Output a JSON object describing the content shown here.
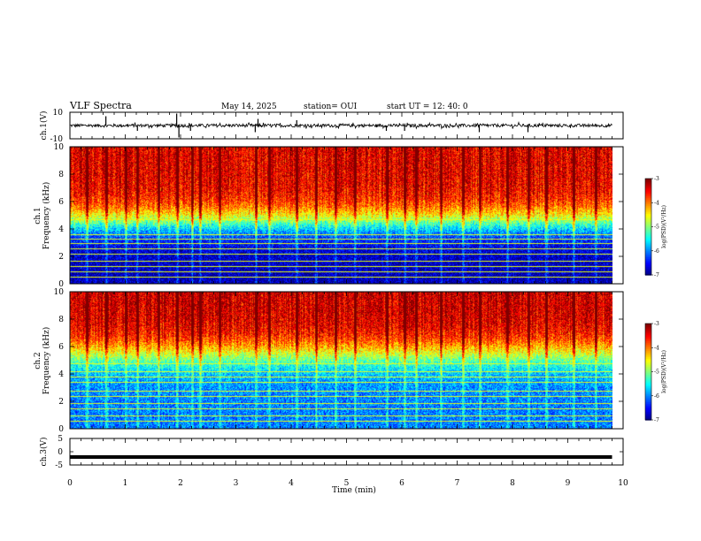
{
  "header": {
    "title": "VLF Spectra",
    "date": "May 14, 2025",
    "station": "station= OUI",
    "start": "start  UT =   12: 40: 0"
  },
  "chart_data": [
    {
      "type": "line",
      "panel": "ch1-waveform",
      "ylabel": "ch.1(V)",
      "ylim": [
        -10,
        10
      ],
      "y_ticks": [
        "10",
        "-10"
      ],
      "xlim": [
        0,
        10
      ],
      "x_extent": 9.8,
      "baseline": 0,
      "noise_amplitude": 1.2,
      "spikes": [
        {
          "x": 0.65,
          "y": 7
        },
        {
          "x": 1.22,
          "y": -4
        },
        {
          "x": 1.93,
          "y": 9
        },
        {
          "x": 1.97,
          "y": -9
        },
        {
          "x": 2.18,
          "y": -4
        },
        {
          "x": 3.35,
          "y": -5
        },
        {
          "x": 3.4,
          "y": 5
        },
        {
          "x": 4.1,
          "y": 4
        },
        {
          "x": 5.72,
          "y": -4
        },
        {
          "x": 6.05,
          "y": -4
        },
        {
          "x": 7.4,
          "y": -5
        },
        {
          "x": 8.28,
          "y": -5
        }
      ]
    },
    {
      "type": "heatmap",
      "panel": "ch1-spectrogram",
      "ylabel_top": "ch.1",
      "ylabel": "Frequency (kHz)",
      "xlim": [
        0,
        10
      ],
      "x_extent": 9.8,
      "ylim": [
        0,
        10
      ],
      "y_ticks": [
        "0",
        "2",
        "4",
        "6",
        "8",
        "10"
      ],
      "colorbar": {
        "label": "log(PSD)(V²/Hz)",
        "range": [
          -7,
          -3
        ],
        "ticks": [
          "-3",
          "-4",
          "-5",
          "-6",
          "-7"
        ]
      },
      "profile_boundary_khz": 4.5,
      "low_band_level": -6.8,
      "high_band_level": -3.4,
      "lines_khz": [
        0.5,
        0.9,
        1.3,
        1.7,
        2.2,
        2.6,
        3.0,
        3.3,
        3.6,
        4.7
      ],
      "vertical_streaks_min": [
        0.3,
        0.65,
        1.0,
        1.22,
        1.6,
        1.93,
        2.2,
        2.35,
        2.7,
        3.35,
        3.6,
        4.1,
        4.45,
        4.8,
        5.15,
        5.72,
        6.05,
        6.25,
        6.7,
        7.1,
        7.4,
        7.9,
        8.28,
        8.6,
        9.1,
        9.5
      ]
    },
    {
      "type": "heatmap",
      "panel": "ch2-spectrogram",
      "ylabel_top": "ch.2",
      "ylabel": "Frequency (kHz)",
      "xlim": [
        0,
        10
      ],
      "x_extent": 9.8,
      "ylim": [
        0,
        10
      ],
      "y_ticks": [
        "0",
        "2",
        "4",
        "6",
        "8",
        "10"
      ],
      "colorbar": {
        "label": "log(PSD)(V²/Hz)",
        "range": [
          -7,
          -3
        ],
        "ticks": [
          "-3",
          "-4",
          "-5",
          "-6",
          "-7"
        ]
      },
      "profile_boundary_khz": 5.5,
      "low_band_level": -6.0,
      "high_band_level": -3.3,
      "lines_khz": [
        0.6,
        1.0,
        1.5,
        1.9,
        2.4,
        2.8,
        3.4,
        3.8,
        4.2,
        4.8
      ],
      "vertical_streaks_min": [
        0.3,
        0.65,
        1.0,
        1.22,
        1.6,
        1.93,
        2.2,
        2.35,
        2.7,
        3.35,
        3.6,
        4.1,
        4.45,
        4.8,
        5.15,
        5.72,
        6.05,
        6.25,
        6.7,
        7.1,
        7.4,
        7.9,
        8.28,
        8.6,
        9.1,
        9.5
      ]
    },
    {
      "type": "line",
      "panel": "ch3-waveform",
      "ylabel": "ch.3(V)",
      "ylim": [
        -5,
        5
      ],
      "y_ticks": [
        "5",
        "0",
        "-5"
      ],
      "xlim": [
        0,
        10
      ],
      "x_extent": 9.8,
      "value": -2,
      "xlabel": "Time (min)",
      "x_ticks": [
        "0",
        "1",
        "2",
        "3",
        "4",
        "5",
        "6",
        "7",
        "8",
        "9",
        "10"
      ]
    }
  ],
  "colors": {
    "colormap": [
      "#00007f",
      "#0000ff",
      "#007fff",
      "#00ffff",
      "#7fff7f",
      "#ffff00",
      "#ff7f00",
      "#ff0000"
    ]
  }
}
